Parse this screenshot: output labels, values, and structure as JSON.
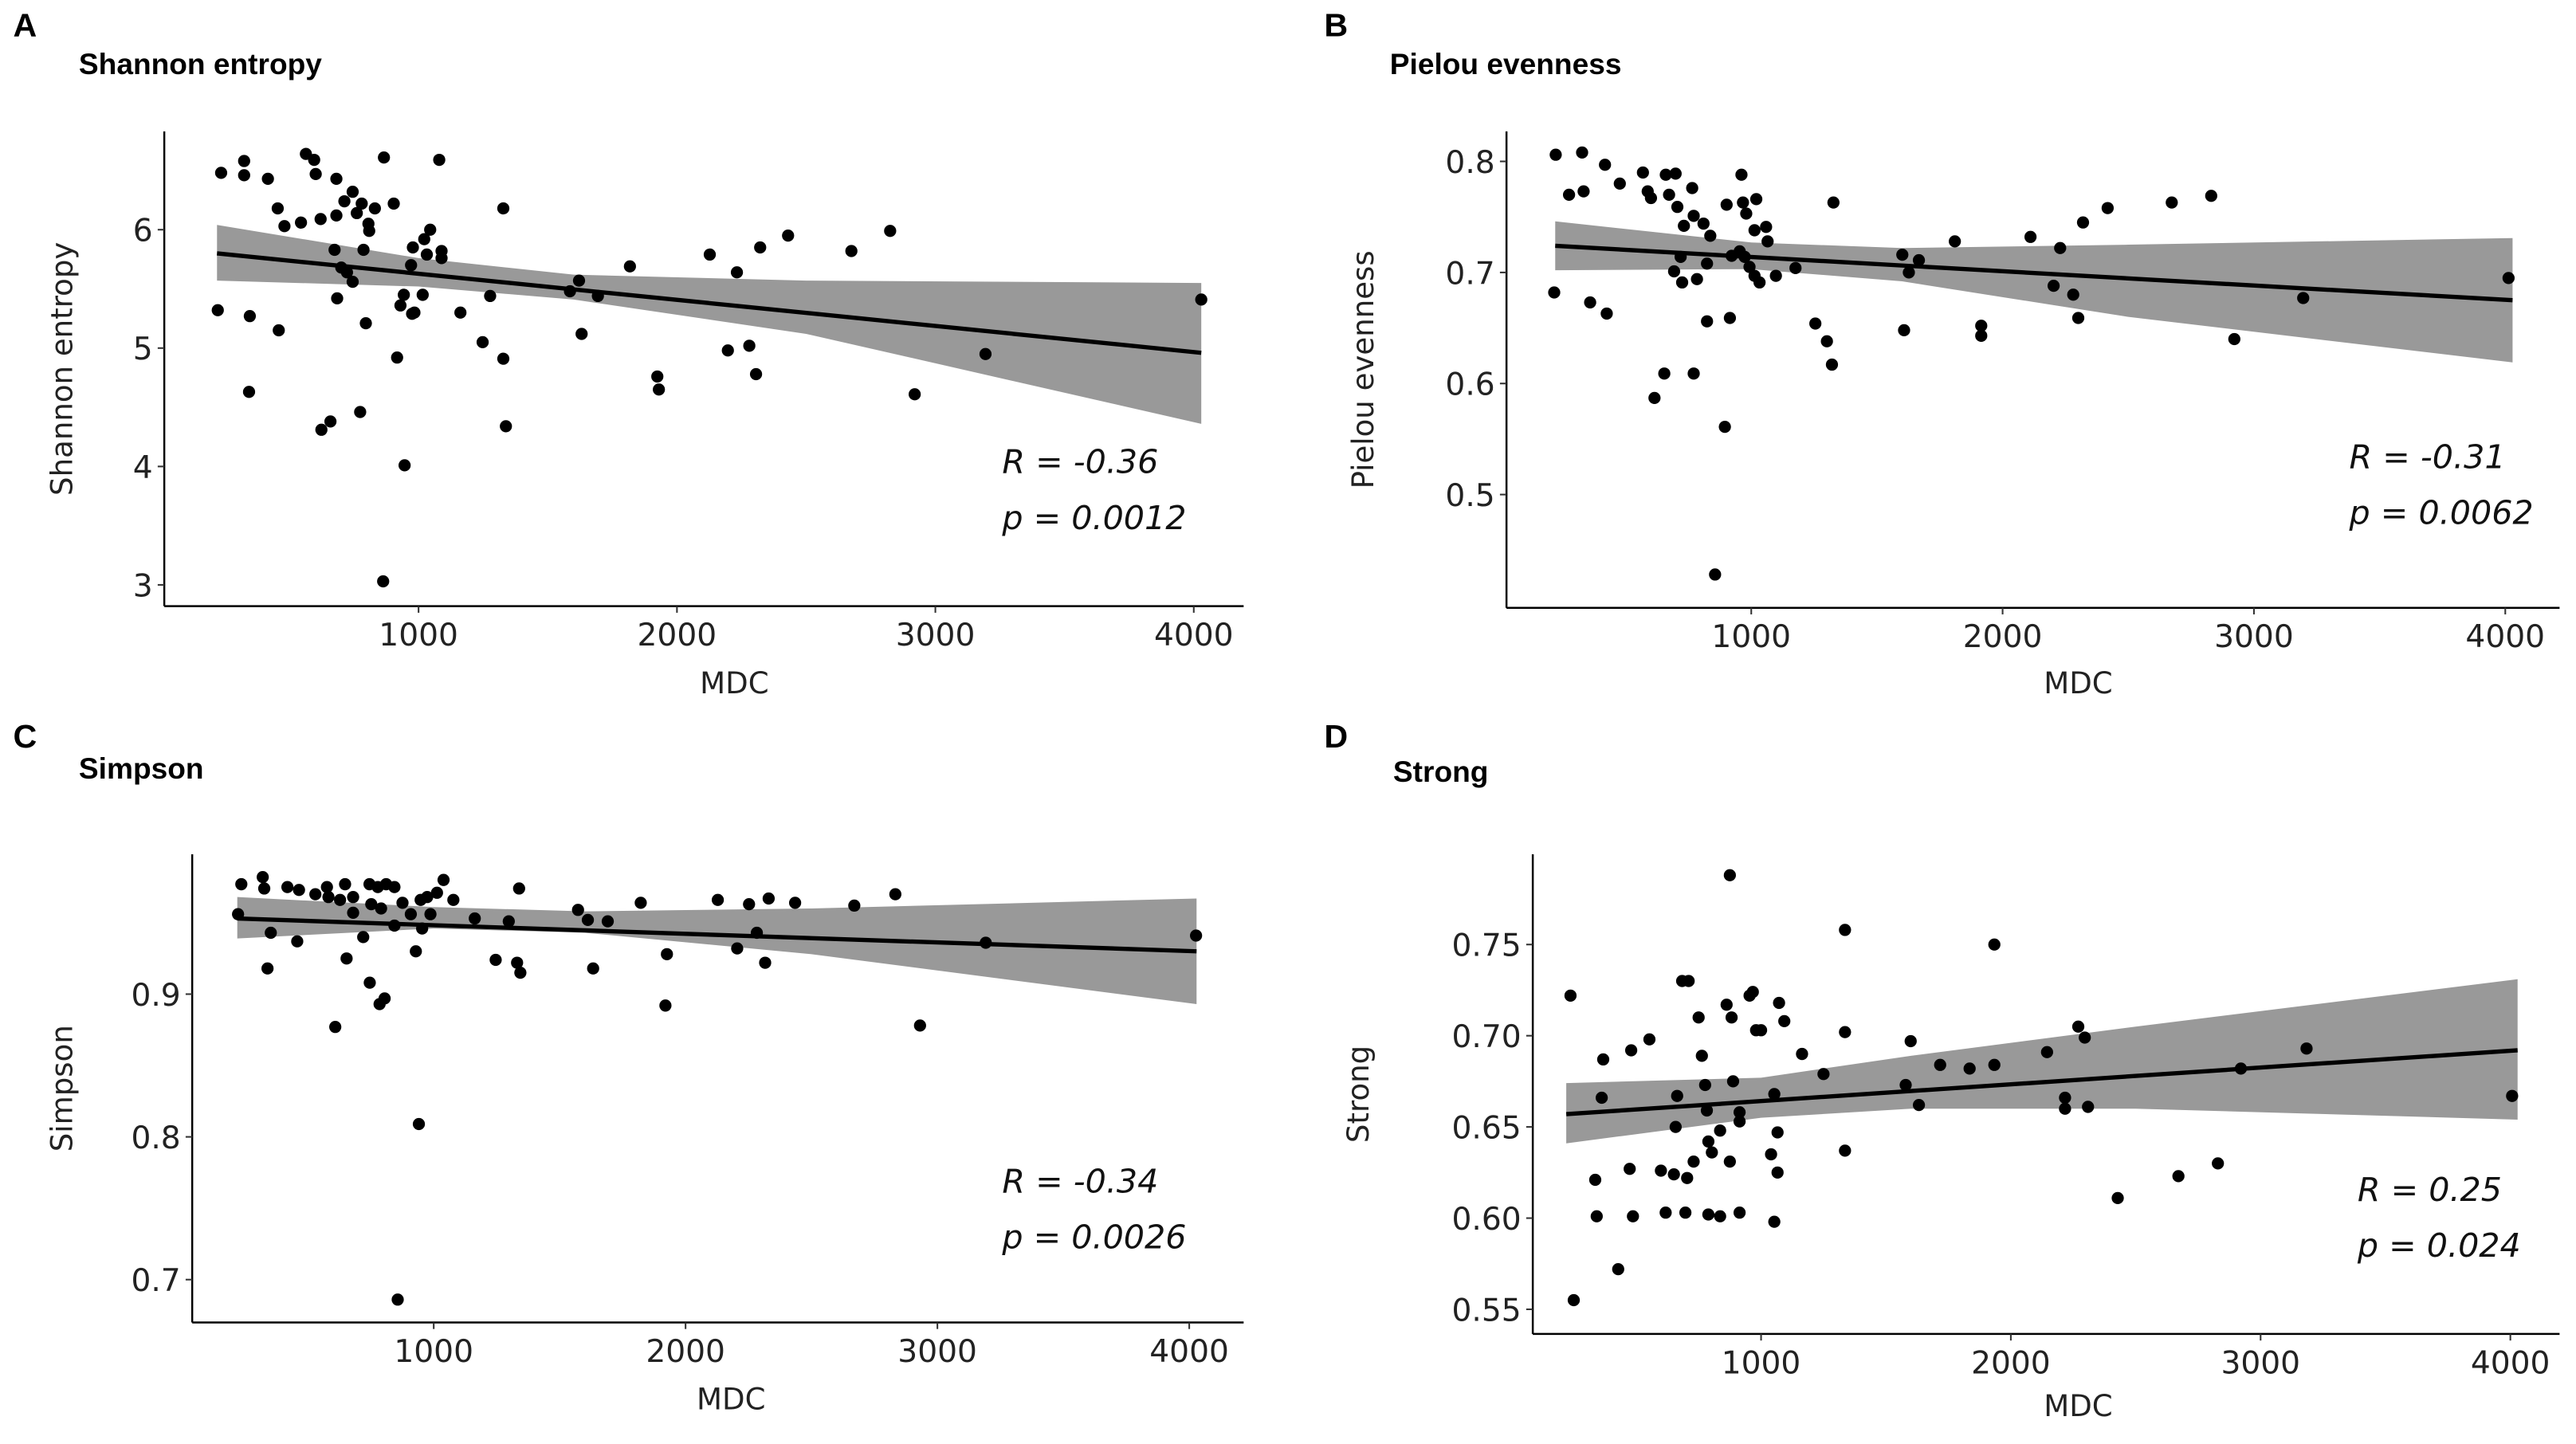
{
  "chart_data": [
    {
      "type": "scatter",
      "panel_label": "A",
      "title": "Shannon entropy",
      "xlabel": "MDC",
      "ylabel": "Shannon entropy",
      "xlim": [
        16,
        4193
      ],
      "ylim": [
        2.82,
        6.83
      ],
      "xticks": [
        1000,
        2000,
        3000,
        4000
      ],
      "xtick_labels": [
        "1000",
        "2000",
        "3000",
        "4000"
      ],
      "yticks": [
        3,
        4,
        5,
        6
      ],
      "ytick_labels": [
        "3",
        "4",
        "5",
        "6"
      ],
      "grid": false,
      "stats": {
        "r": "R = -0.36",
        "p": "p = 0.0012"
      },
      "fit": {
        "x": [
          220,
          4029
        ],
        "y": [
          5.8,
          4.96
        ]
      },
      "ci": {
        "x": [
          220,
          1000,
          1600,
          2500,
          4029
        ],
        "lower": [
          5.57,
          5.52,
          5.41,
          5.12,
          4.36
        ],
        "upper": [
          6.04,
          5.76,
          5.62,
          5.57,
          5.55
        ]
      },
      "points": [
        [
          236,
          6.48
        ],
        [
          325,
          6.58
        ],
        [
          325,
          6.46
        ],
        [
          417,
          6.43
        ],
        [
          564,
          6.64
        ],
        [
          596,
          6.59
        ],
        [
          602,
          6.47
        ],
        [
          682,
          6.43
        ],
        [
          745,
          6.32
        ],
        [
          713,
          6.24
        ],
        [
          780,
          6.22
        ],
        [
          761,
          6.14
        ],
        [
          831,
          6.18
        ],
        [
          866,
          6.61
        ],
        [
          904,
          6.22
        ],
        [
          1080,
          6.59
        ],
        [
          1328,
          6.18
        ],
        [
          455,
          6.18
        ],
        [
          481,
          6.03
        ],
        [
          545,
          6.06
        ],
        [
          621,
          6.09
        ],
        [
          682,
          6.12
        ],
        [
          806,
          6.05
        ],
        [
          809,
          5.99
        ],
        [
          675,
          5.83
        ],
        [
          787,
          5.83
        ],
        [
          701,
          5.68
        ],
        [
          723,
          5.64
        ],
        [
          745,
          5.56
        ],
        [
          685,
          5.42
        ],
        [
          223,
          5.32
        ],
        [
          347,
          5.27
        ],
        [
          459,
          5.15
        ],
        [
          796,
          5.21
        ],
        [
          943,
          5.45
        ],
        [
          930,
          5.36
        ],
        [
          975,
          5.29
        ],
        [
          984,
          5.3
        ],
        [
          1016,
          5.45
        ],
        [
          971,
          5.7
        ],
        [
          978,
          5.85
        ],
        [
          1022,
          5.92
        ],
        [
          1045,
          6.0
        ],
        [
          1032,
          5.79
        ],
        [
          1089,
          5.82
        ],
        [
          1089,
          5.76
        ],
        [
          1162,
          5.3
        ],
        [
          1277,
          5.44
        ],
        [
          1248,
          5.05
        ],
        [
          1328,
          4.91
        ],
        [
          1338,
          4.34
        ],
        [
          917,
          4.92
        ],
        [
          946,
          4.01
        ],
        [
          863,
          3.03
        ],
        [
          774,
          4.46
        ],
        [
          659,
          4.38
        ],
        [
          624,
          4.31
        ],
        [
          344,
          4.63
        ],
        [
          1586,
          5.48
        ],
        [
          1621,
          5.57
        ],
        [
          1694,
          5.44
        ],
        [
          1631,
          5.12
        ],
        [
          1818,
          5.69
        ],
        [
          1924,
          4.76
        ],
        [
          1930,
          4.65
        ],
        [
          2127,
          5.79
        ],
        [
          2232,
          5.64
        ],
        [
          2322,
          5.85
        ],
        [
          2430,
          5.95
        ],
        [
          2197,
          4.98
        ],
        [
          2280,
          5.02
        ],
        [
          2306,
          4.78
        ],
        [
          2675,
          5.82
        ],
        [
          2825,
          5.99
        ],
        [
          2920,
          4.61
        ],
        [
          3194,
          4.95
        ],
        [
          4029,
          5.41
        ]
      ]
    },
    {
      "type": "scatter",
      "panel_label": "B",
      "title": "Pielou evenness",
      "xlabel": "MDC",
      "ylabel": "Pielou evenness",
      "xlim": [
        -366,
        4216
      ],
      "ylim": [
        0.398,
        0.827
      ],
      "xticks": [
        1000,
        2000,
        3000,
        4000
      ],
      "xtick_labels": [
        "1000",
        "2000",
        "3000",
        "4000"
      ],
      "yticks": [
        0.5,
        0.6,
        0.7,
        0.8
      ],
      "ytick_labels": [
        "0.5",
        "0.6",
        "0.7",
        "0.8"
      ],
      "grid": false,
      "stats": {
        "r": "R = -0.31",
        "p": "p = 0.0062"
      },
      "fit": {
        "x": [
          220,
          4029
        ],
        "y": [
          0.724,
          0.675
        ]
      },
      "ci": {
        "x": [
          220,
          1000,
          1600,
          2500,
          4029
        ],
        "lower": [
          0.702,
          0.703,
          0.692,
          0.66,
          0.619
        ],
        "upper": [
          0.746,
          0.727,
          0.722,
          0.725,
          0.731
        ]
      },
      "points": [
        [
          222,
          0.806
        ],
        [
          327,
          0.808
        ],
        [
          418,
          0.797
        ],
        [
          333,
          0.773
        ],
        [
          275,
          0.77
        ],
        [
          477,
          0.78
        ],
        [
          569,
          0.79
        ],
        [
          588,
          0.773
        ],
        [
          601,
          0.767
        ],
        [
          660,
          0.788
        ],
        [
          699,
          0.789
        ],
        [
          765,
          0.776
        ],
        [
          673,
          0.77
        ],
        [
          706,
          0.759
        ],
        [
          771,
          0.751
        ],
        [
          732,
          0.742
        ],
        [
          810,
          0.744
        ],
        [
          837,
          0.733
        ],
        [
          902,
          0.761
        ],
        [
          961,
          0.788
        ],
        [
          967,
          0.763
        ],
        [
          980,
          0.753
        ],
        [
          1013,
          0.738
        ],
        [
          1020,
          0.766
        ],
        [
          1059,
          0.741
        ],
        [
          1065,
          0.728
        ],
        [
          1327,
          0.763
        ],
        [
          693,
          0.701
        ],
        [
          719,
          0.714
        ],
        [
          824,
          0.708
        ],
        [
          784,
          0.694
        ],
        [
          725,
          0.691
        ],
        [
          922,
          0.715
        ],
        [
          954,
          0.719
        ],
        [
          974,
          0.714
        ],
        [
          993,
          0.705
        ],
        [
          1013,
          0.697
        ],
        [
          1033,
          0.691
        ],
        [
          1098,
          0.697
        ],
        [
          1176,
          0.704
        ],
        [
          359,
          0.673
        ],
        [
          425,
          0.663
        ],
        [
          216,
          0.682
        ],
        [
          824,
          0.656
        ],
        [
          915,
          0.659
        ],
        [
          1255,
          0.654
        ],
        [
          1301,
          0.638
        ],
        [
          1321,
          0.617
        ],
        [
          654,
          0.609
        ],
        [
          615,
          0.587
        ],
        [
          771,
          0.609
        ],
        [
          895,
          0.561
        ],
        [
          856,
          0.428
        ],
        [
          1601,
          0.716
        ],
        [
          1627,
          0.7
        ],
        [
          1667,
          0.711
        ],
        [
          1810,
          0.728
        ],
        [
          1608,
          0.648
        ],
        [
          1915,
          0.652
        ],
        [
          1915,
          0.643
        ],
        [
          2111,
          0.732
        ],
        [
          2203,
          0.688
        ],
        [
          2229,
          0.722
        ],
        [
          2281,
          0.68
        ],
        [
          2320,
          0.745
        ],
        [
          2301,
          0.659
        ],
        [
          2418,
          0.758
        ],
        [
          2673,
          0.763
        ],
        [
          2830,
          0.769
        ],
        [
          2922,
          0.64
        ],
        [
          3196,
          0.677
        ],
        [
          4013,
          0.695
        ]
      ]
    },
    {
      "type": "scatter",
      "panel_label": "C",
      "title": "Simpson",
      "xlabel": "MDC",
      "ylabel": "Simpson",
      "xlim": [
        41,
        4216
      ],
      "ylim": [
        0.67,
        0.998
      ],
      "xticks": [
        1000,
        2000,
        3000,
        4000
      ],
      "xtick_labels": [
        "1000",
        "2000",
        "3000",
        "4000"
      ],
      "yticks": [
        0.7,
        0.8,
        0.9
      ],
      "ytick_labels": [
        "0.7",
        "0.8",
        "0.9"
      ],
      "grid": false,
      "stats": {
        "r": "R = -0.34",
        "p": "p = 0.0026"
      },
      "fit": {
        "x": [
          220,
          4029
        ],
        "y": [
          0.953,
          0.93
        ]
      },
      "ci": {
        "x": [
          220,
          1000,
          1600,
          2500,
          4029
        ],
        "lower": [
          0.939,
          0.946,
          0.943,
          0.928,
          0.893
        ],
        "upper": [
          0.968,
          0.961,
          0.958,
          0.96,
          0.967
        ]
      },
      "points": [
        [
          223,
          0.956
        ],
        [
          236,
          0.977
        ],
        [
          321,
          0.982
        ],
        [
          327,
          0.974
        ],
        [
          353,
          0.943
        ],
        [
          340,
          0.918
        ],
        [
          419,
          0.975
        ],
        [
          465,
          0.973
        ],
        [
          458,
          0.937
        ],
        [
          530,
          0.97
        ],
        [
          576,
          0.975
        ],
        [
          582,
          0.968
        ],
        [
          648,
          0.977
        ],
        [
          680,
          0.968
        ],
        [
          628,
          0.966
        ],
        [
          680,
          0.957
        ],
        [
          745,
          0.977
        ],
        [
          778,
          0.975
        ],
        [
          811,
          0.977
        ],
        [
          844,
          0.975
        ],
        [
          752,
          0.963
        ],
        [
          791,
          0.96
        ],
        [
          876,
          0.964
        ],
        [
          909,
          0.956
        ],
        [
          948,
          0.966
        ],
        [
          974,
          0.968
        ],
        [
          1013,
          0.971
        ],
        [
          987,
          0.956
        ],
        [
          1039,
          0.98
        ],
        [
          1078,
          0.966
        ],
        [
          1163,
          0.953
        ],
        [
          1339,
          0.974
        ],
        [
          1298,
          0.951
        ],
        [
          1331,
          0.922
        ],
        [
          1344,
          0.915
        ],
        [
          1246,
          0.924
        ],
        [
          720,
          0.94
        ],
        [
          746,
          0.908
        ],
        [
          785,
          0.893
        ],
        [
          805,
          0.897
        ],
        [
          929,
          0.93
        ],
        [
          941,
          0.809
        ],
        [
          857,
          0.686
        ],
        [
          654,
          0.925
        ],
        [
          609,
          0.877
        ],
        [
          844,
          0.948
        ],
        [
          954,
          0.946
        ],
        [
          1573,
          0.959
        ],
        [
          1612,
          0.952
        ],
        [
          1691,
          0.951
        ],
        [
          1822,
          0.964
        ],
        [
          1633,
          0.918
        ],
        [
          1926,
          0.928
        ],
        [
          1920,
          0.892
        ],
        [
          2128,
          0.966
        ],
        [
          2252,
          0.963
        ],
        [
          2330,
          0.967
        ],
        [
          2435,
          0.964
        ],
        [
          2205,
          0.932
        ],
        [
          2283,
          0.943
        ],
        [
          2316,
          0.922
        ],
        [
          2670,
          0.962
        ],
        [
          2833,
          0.97
        ],
        [
          2931,
          0.878
        ],
        [
          3192,
          0.936
        ],
        [
          4027,
          0.941
        ]
      ]
    },
    {
      "type": "scatter",
      "panel_label": "D",
      "title": "Strong",
      "xlabel": "MDC",
      "ylabel": "Strong",
      "xlim": [
        86,
        4197
      ],
      "ylim": [
        0.5365,
        0.7995
      ],
      "xticks": [
        1000,
        2000,
        3000,
        4000
      ],
      "xtick_labels": [
        "1000",
        "2000",
        "3000",
        "4000"
      ],
      "yticks": [
        0.55,
        0.6,
        0.65,
        0.7,
        0.75
      ],
      "ytick_labels": [
        "0.55",
        "0.60",
        "0.65",
        "0.70",
        "0.75"
      ],
      "grid": false,
      "stats": {
        "r": "R = 0.25",
        "p": "p = 0.024"
      },
      "fit": {
        "x": [
          220,
          4029
        ],
        "y": [
          0.657,
          0.692
        ]
      },
      "ci": {
        "x": [
          220,
          1000,
          1600,
          2500,
          4029
        ],
        "lower": [
          0.641,
          0.655,
          0.66,
          0.66,
          0.654
        ],
        "upper": [
          0.674,
          0.677,
          0.689,
          0.705,
          0.731
        ]
      },
      "points": [
        [
          237,
          0.722
        ],
        [
          250,
          0.555
        ],
        [
          336,
          0.621
        ],
        [
          342,
          0.601
        ],
        [
          362,
          0.666
        ],
        [
          368,
          0.687
        ],
        [
          428,
          0.572
        ],
        [
          474,
          0.627
        ],
        [
          480,
          0.692
        ],
        [
          487,
          0.601
        ],
        [
          553,
          0.698
        ],
        [
          599,
          0.626
        ],
        [
          618,
          0.603
        ],
        [
          651,
          0.624
        ],
        [
          664,
          0.667
        ],
        [
          658,
          0.65
        ],
        [
          684,
          0.73
        ],
        [
          710,
          0.73
        ],
        [
          704,
          0.622
        ],
        [
          730,
          0.631
        ],
        [
          697,
          0.603
        ],
        [
          750,
          0.71
        ],
        [
          763,
          0.689
        ],
        [
          776,
          0.673
        ],
        [
          783,
          0.659
        ],
        [
          789,
          0.642
        ],
        [
          803,
          0.636
        ],
        [
          836,
          0.648
        ],
        [
          836,
          0.601
        ],
        [
          862,
          0.717
        ],
        [
          882,
          0.71
        ],
        [
          875,
          0.631
        ],
        [
          789,
          0.602
        ],
        [
          888,
          0.675
        ],
        [
          914,
          0.658
        ],
        [
          914,
          0.653
        ],
        [
          914,
          0.603
        ],
        [
          875,
          0.788
        ],
        [
          954,
          0.722
        ],
        [
          967,
          0.724
        ],
        [
          980,
          0.703
        ],
        [
          1000,
          0.703
        ],
        [
          1053,
          0.668
        ],
        [
          1040,
          0.635
        ],
        [
          1072,
          0.718
        ],
        [
          1066,
          0.647
        ],
        [
          1093,
          0.708
        ],
        [
          1164,
          0.69
        ],
        [
          1250,
          0.679
        ],
        [
          1066,
          0.625
        ],
        [
          1053,
          0.598
        ],
        [
          1336,
          0.758
        ],
        [
          1336,
          0.702
        ],
        [
          1336,
          0.637
        ],
        [
          1599,
          0.697
        ],
        [
          1579,
          0.673
        ],
        [
          1632,
          0.662
        ],
        [
          1717,
          0.684
        ],
        [
          1835,
          0.682
        ],
        [
          1934,
          0.684
        ],
        [
          1934,
          0.75
        ],
        [
          2145,
          0.691
        ],
        [
          2217,
          0.666
        ],
        [
          2217,
          0.66
        ],
        [
          2270,
          0.705
        ],
        [
          2296,
          0.699
        ],
        [
          2309,
          0.661
        ],
        [
          2428,
          0.611
        ],
        [
          2671,
          0.623
        ],
        [
          2829,
          0.63
        ],
        [
          2921,
          0.682
        ],
        [
          3184,
          0.693
        ],
        [
          4007,
          0.667
        ]
      ]
    }
  ],
  "colors": {
    "points": "#000000",
    "fit_line": "#000000",
    "ci_band": "#999999",
    "axis": "#000000"
  }
}
